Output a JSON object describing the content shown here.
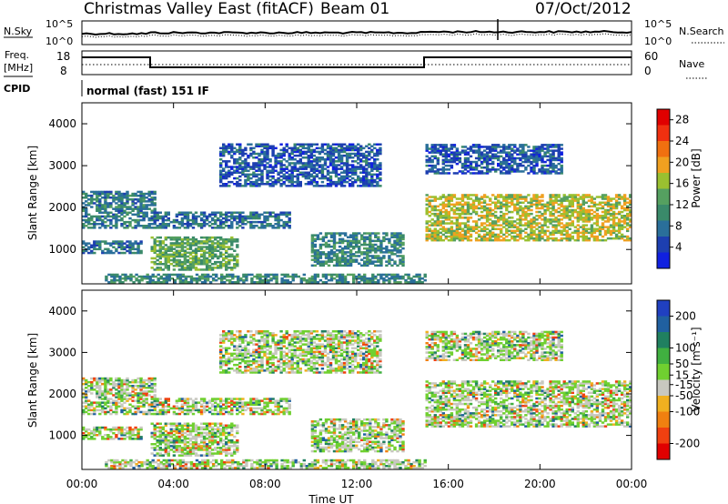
{
  "header": {
    "title": "Christmas Valley East (fitACF)",
    "beam": "Beam 01",
    "date": "07/Oct/2012"
  },
  "top_panels": {
    "nsky_label": "N.Sky",
    "nsearch_label": "N.Search",
    "nsky_ticks": [
      "10^5",
      "10^0"
    ],
    "nsearch_ticks": [
      "10^5",
      "10^0"
    ],
    "freq_label": "Freq.",
    "freq_unit": "[MHz]",
    "freq_ticks": [
      "18",
      "8"
    ],
    "nave_label": "Nave",
    "nave_ticks": [
      "60",
      "0"
    ],
    "cpid_label": "CPID",
    "cpid_value": "normal (fast) 151 IF"
  },
  "colors": {
    "power_scale": [
      "#1020e0",
      "#1d3fb0",
      "#2a6f9a",
      "#3a8a6a",
      "#55a060",
      "#9ac030",
      "#f0a020",
      "#f07010",
      "#f03010",
      "#e00000"
    ],
    "velocity_scale": [
      "#2040c0",
      "#2060a0",
      "#208060",
      "#40b040",
      "#70d030",
      "#c8c8c0",
      "#f0b020",
      "#f08010",
      "#f04010",
      "#e00000"
    ]
  },
  "chart_data": [
    {
      "type": "heatmap",
      "panel": "power",
      "xlabel": "",
      "ylabel": "Slant Range [km]",
      "xlim": [
        "00:00",
        "24:00"
      ],
      "ylim": [
        180,
        4500
      ],
      "yticks": [
        1000,
        2000,
        3000,
        4000
      ],
      "colorbar_label": "Power [dB]",
      "colorbar_ticks": [
        4,
        8,
        12,
        16,
        20,
        24,
        28
      ],
      "colorbar_range": [
        0,
        30
      ],
      "echo_regions": [
        {
          "t0": 0.0,
          "t1": 3.2,
          "r0": 1500,
          "r1": 2400,
          "value": 9
        },
        {
          "t0": 0.0,
          "t1": 2.6,
          "r0": 900,
          "r1": 1200,
          "value": 8
        },
        {
          "t0": 3.0,
          "t1": 6.8,
          "r0": 500,
          "r1": 1300,
          "value": 13
        },
        {
          "t0": 3.0,
          "t1": 9.0,
          "r0": 1500,
          "r1": 1900,
          "value": 8
        },
        {
          "t0": 6.0,
          "t1": 13.0,
          "r0": 2500,
          "r1": 3500,
          "value": 6
        },
        {
          "t0": 10.0,
          "t1": 14.0,
          "r0": 600,
          "r1": 1400,
          "value": 10
        },
        {
          "t0": 15.0,
          "t1": 24.0,
          "r0": 1200,
          "r1": 2300,
          "value": 17
        },
        {
          "t0": 15.0,
          "t1": 21.0,
          "r0": 2800,
          "r1": 3500,
          "value": 6
        },
        {
          "t0": 1.0,
          "t1": 15.0,
          "r0": 200,
          "r1": 400,
          "value": 10
        }
      ]
    },
    {
      "type": "heatmap",
      "panel": "velocity",
      "xlabel": "Time UT",
      "ylabel": "Slant Range [km]",
      "xlim": [
        "00:00",
        "24:00"
      ],
      "ylim": [
        180,
        4500
      ],
      "yticks": [
        1000,
        2000,
        3000,
        4000
      ],
      "xticks": [
        "00:00",
        "04:00",
        "08:00",
        "12:00",
        "16:00",
        "20:00",
        "00:00"
      ],
      "colorbar_label": "Velocity [m s⁻¹]",
      "colorbar_ticks": [
        200,
        100,
        50,
        15,
        -15,
        -50,
        -100,
        -200
      ],
      "colorbar_range": [
        -250,
        250
      ]
    }
  ]
}
